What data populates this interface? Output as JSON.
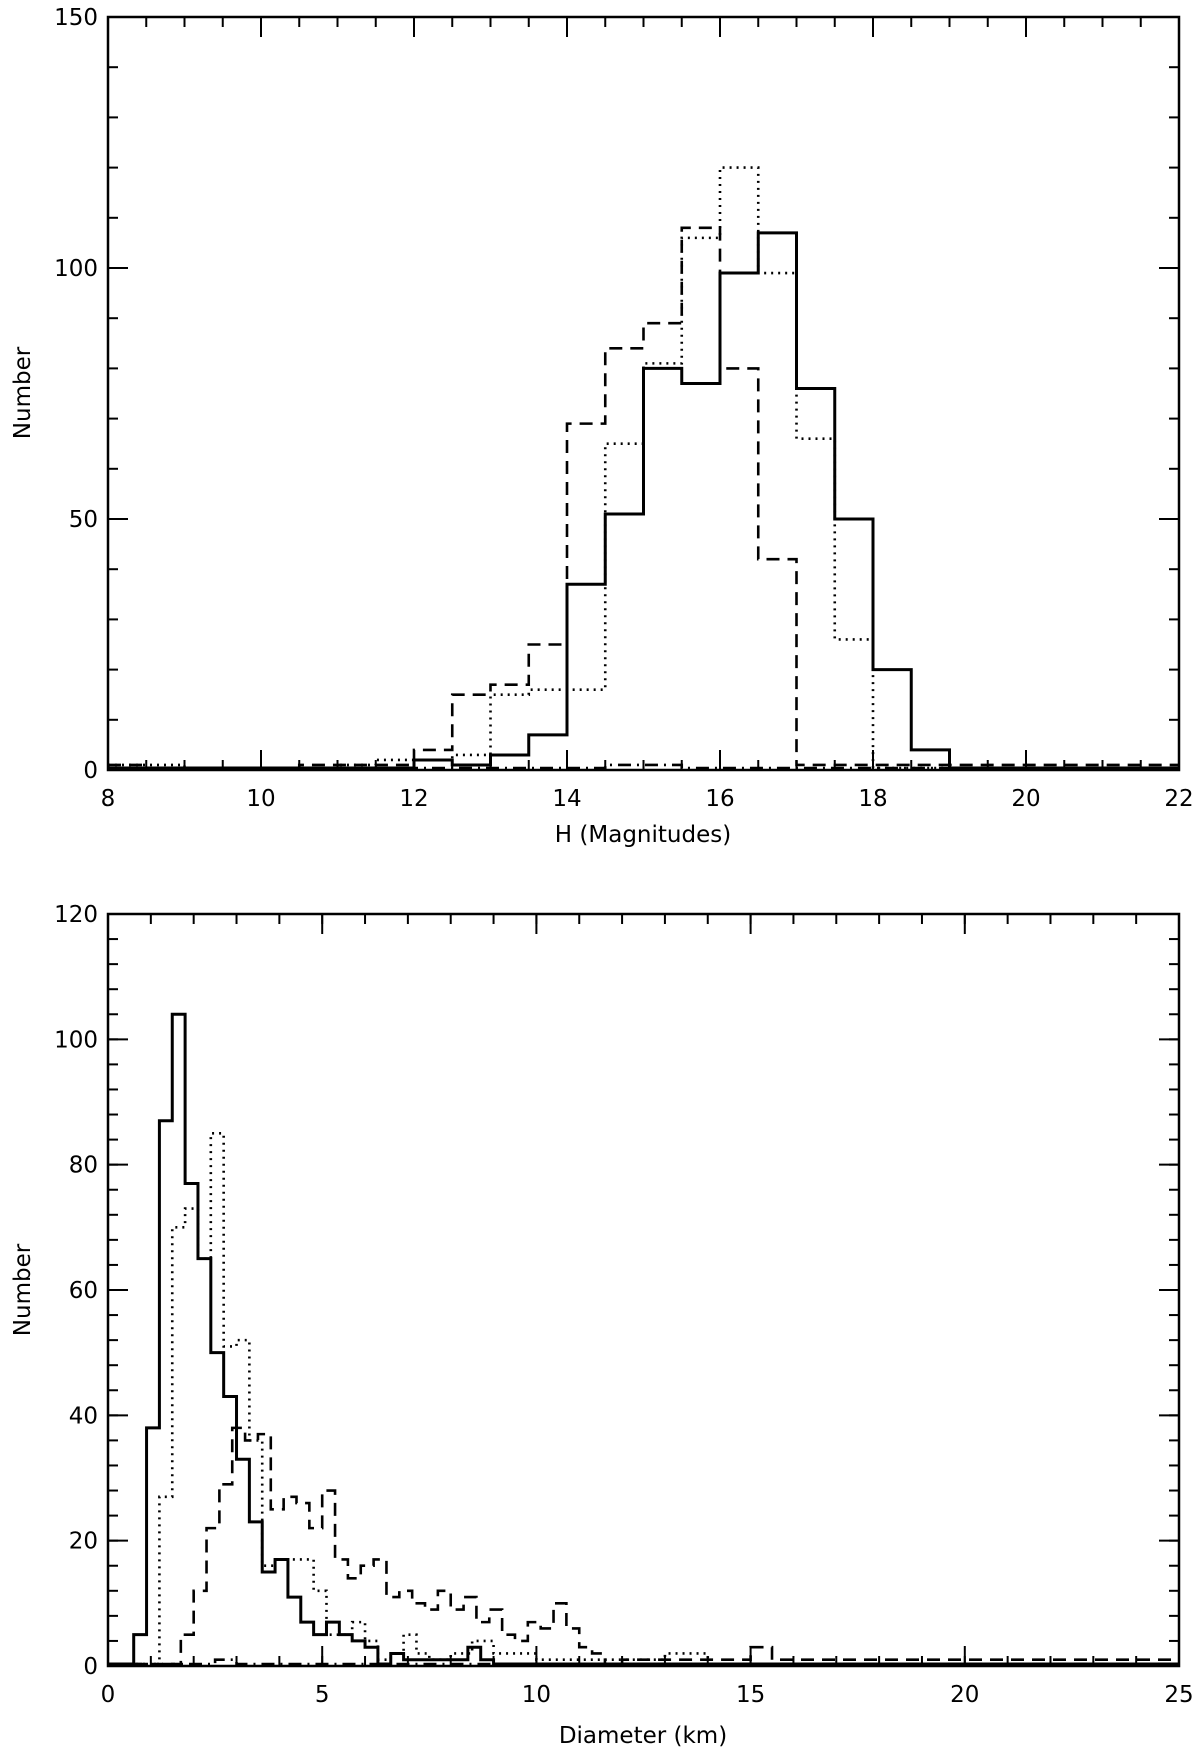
{
  "chart_data": [
    {
      "type": "histogram",
      "xlabel": "H (Magnitudes)",
      "ylabel": "Number",
      "xlim": [
        8,
        22
      ],
      "ylim": [
        0,
        150
      ],
      "xticks": [
        8,
        10,
        12,
        14,
        16,
        18,
        20,
        22
      ],
      "yticks": [
        0,
        50,
        100,
        150
      ],
      "x_minor_step": 0.5,
      "y_minor_step": 10,
      "legend": "none",
      "grid": false,
      "series": [
        {
          "style": "solid",
          "edges": [
            8,
            8.5,
            9,
            9.5,
            10,
            10.5,
            11,
            11.5,
            12,
            12.5,
            13,
            13.5,
            14,
            14.5,
            15,
            15.5,
            16,
            16.5,
            17,
            17.5,
            18,
            18.5,
            19,
            22
          ],
          "values": [
            0,
            0,
            0,
            0,
            0,
            0,
            0,
            0,
            2,
            1,
            3,
            7,
            37,
            51,
            80,
            77,
            99,
            107,
            76,
            50,
            20,
            4,
            0
          ]
        },
        {
          "style": "dotted",
          "edges": [
            8,
            8.5,
            9,
            9.5,
            10,
            10.5,
            11,
            11.5,
            12,
            12.5,
            13,
            13.5,
            14,
            14.5,
            15,
            15.5,
            16,
            16.5,
            17,
            17.5,
            18,
            22
          ],
          "values": [
            1,
            1,
            0,
            0,
            0,
            0,
            1,
            2,
            2,
            3,
            15,
            16,
            16,
            65,
            81,
            106,
            120,
            99,
            66,
            26,
            0
          ]
        },
        {
          "style": "dashed",
          "edges": [
            8,
            8.5,
            9,
            9.5,
            10,
            10.5,
            11,
            11.5,
            12,
            12.5,
            13,
            13.5,
            14,
            14.5,
            15,
            15.5,
            16,
            16.5,
            17,
            22
          ],
          "values": [
            1,
            0,
            0,
            0,
            0,
            1,
            1,
            1,
            4,
            15,
            17,
            25,
            69,
            84,
            89,
            108,
            80,
            42,
            1
          ]
        },
        {
          "style": "dash-dot",
          "edges": [
            8,
            14.5,
            15,
            15.5,
            16,
            16.5,
            17,
            22
          ],
          "values": [
            0,
            1,
            1,
            0,
            0,
            0,
            0
          ]
        }
      ]
    },
    {
      "type": "histogram",
      "xlabel": "Diameter (km)",
      "ylabel": "Number",
      "xlim": [
        0,
        25
      ],
      "ylim": [
        0,
        120
      ],
      "xticks": [
        0,
        5,
        10,
        15,
        20,
        25
      ],
      "yticks": [
        0,
        20,
        40,
        60,
        80,
        100,
        120
      ],
      "x_minor_step": 1,
      "y_minor_step": 4,
      "legend": "none",
      "grid": false,
      "series": [
        {
          "style": "solid",
          "edges": [
            0,
            0.6,
            0.9,
            1.2,
            1.5,
            1.8,
            2.1,
            2.4,
            2.7,
            3.0,
            3.3,
            3.6,
            3.9,
            4.2,
            4.5,
            4.8,
            5.1,
            5.4,
            5.7,
            6.0,
            6.3,
            6.6,
            6.9,
            7.2,
            7.5,
            7.8,
            8.1,
            8.4,
            8.7,
            9.0,
            25
          ],
          "values": [
            0,
            5,
            38,
            87,
            104,
            77,
            65,
            50,
            43,
            33,
            23,
            15,
            17,
            11,
            7,
            5,
            7,
            5,
            4,
            3,
            0,
            2,
            1,
            1,
            1,
            1,
            1,
            3,
            1,
            0
          ]
        },
        {
          "style": "dotted",
          "edges": [
            0,
            1.2,
            1.5,
            1.8,
            2.1,
            2.4,
            2.7,
            3.0,
            3.3,
            3.6,
            3.9,
            4.2,
            4.5,
            4.8,
            5.1,
            5.4,
            5.7,
            6.0,
            6.3,
            6.6,
            6.9,
            7.2,
            7.5,
            8.0,
            8.5,
            9.0,
            10.0,
            11.0,
            13.0,
            14.0,
            25
          ],
          "values": [
            0,
            27,
            70,
            73,
            65,
            85,
            51,
            52,
            36,
            16,
            17,
            17,
            17,
            12,
            5,
            5,
            7,
            4,
            1,
            2,
            5,
            2,
            1,
            2,
            4,
            2,
            1,
            1,
            2,
            0
          ]
        },
        {
          "style": "dashed",
          "edges": [
            0,
            1.7,
            2.0,
            2.3,
            2.6,
            2.9,
            3.2,
            3.5,
            3.8,
            4.1,
            4.4,
            4.7,
            5.0,
            5.3,
            5.6,
            5.9,
            6.2,
            6.5,
            6.8,
            7.1,
            7.4,
            7.7,
            8.0,
            8.3,
            8.6,
            8.9,
            9.2,
            9.5,
            9.8,
            10.1,
            10.4,
            10.7,
            11.0,
            11.3,
            11.6,
            12.0,
            15.0,
            15.5,
            25
          ],
          "values": [
            0,
            5,
            12,
            22,
            29,
            38,
            36,
            37,
            25,
            27,
            26,
            22,
            28,
            17,
            14,
            16,
            17,
            11,
            12,
            10,
            9,
            12,
            9,
            11,
            7,
            9,
            5,
            4,
            7,
            6,
            10,
            6,
            3,
            2,
            0,
            1,
            3,
            1
          ]
        },
        {
          "style": "dash-dot",
          "edges": [
            0,
            2.5,
            3.0,
            25
          ],
          "values": [
            0,
            1,
            0
          ]
        }
      ]
    }
  ]
}
